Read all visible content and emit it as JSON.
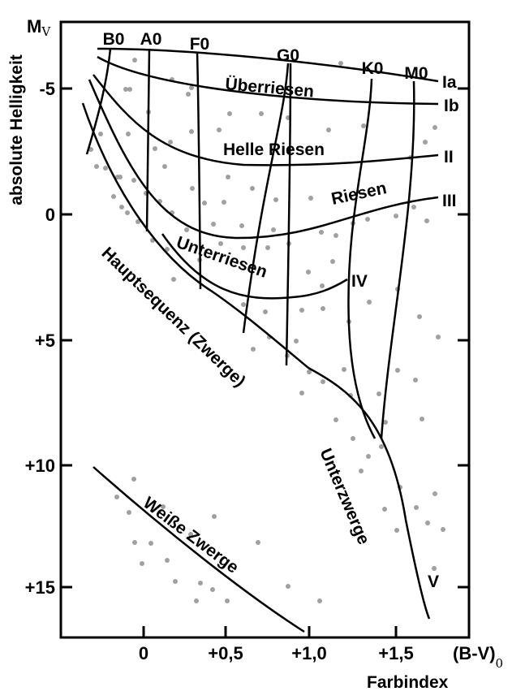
{
  "diagram": {
    "y_axis": {
      "symbol": "M",
      "symbol_sub": "V",
      "title": "absolute Helligkeit",
      "ticks": [
        "-5",
        "0",
        "+5",
        "+10",
        "+15"
      ]
    },
    "x_axis": {
      "title": "Farbindex",
      "unit": "(B-V)",
      "unit_sub": "0",
      "ticks": [
        "0",
        "+0,5",
        "+1,0",
        "+1,5"
      ]
    },
    "spectral_classes": [
      "B0",
      "A0",
      "F0",
      "G0",
      "K0",
      "M0"
    ],
    "luminosity_classes": [
      "Ia",
      "Ib",
      "II",
      "III",
      "IV",
      "V"
    ],
    "regions": {
      "supergiants": "Überriesen",
      "bright_giants": "Helle Riesen",
      "giants": "Riesen",
      "subgiants": "Unterriesen",
      "main_sequence": "Hauptsequenz (Zwerge)",
      "subdwarfs": "Unterzwerge",
      "white_dwarfs": "Weiße Zwerge"
    },
    "colors": {
      "ink": "#000000",
      "dots": "#a0a0a0",
      "background": "#ffffff"
    }
  }
}
